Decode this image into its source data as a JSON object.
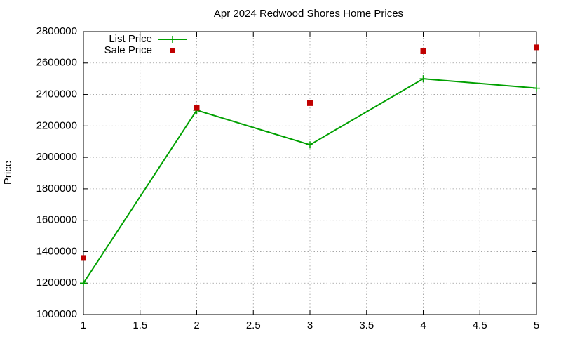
{
  "chart_data": {
    "type": "line",
    "title": "Apr 2024 Redwood Shores Home Prices",
    "y_label": "Price",
    "x": [
      1,
      2,
      3,
      4,
      5
    ],
    "series": [
      {
        "name": "List Price",
        "color": "#00a000",
        "line": true,
        "marker": "cross",
        "values": [
          1200000,
          2300000,
          2080000,
          2500000,
          2440000
        ]
      },
      {
        "name": "Sale Price",
        "color": "#c00000",
        "line": false,
        "marker": "square",
        "values": [
          1360000,
          2315000,
          2345000,
          2675000,
          2700000
        ]
      }
    ],
    "xlim": [
      1,
      5
    ],
    "xticks": [
      1,
      1.5,
      2,
      2.5,
      3,
      3.5,
      4,
      4.5,
      5
    ],
    "ylim": [
      1000000,
      2800000
    ],
    "yticks": [
      1000000,
      1200000,
      1400000,
      1600000,
      1800000,
      2000000,
      2200000,
      2400000,
      2600000,
      2800000
    ],
    "grid": true,
    "legend": "top-left"
  }
}
